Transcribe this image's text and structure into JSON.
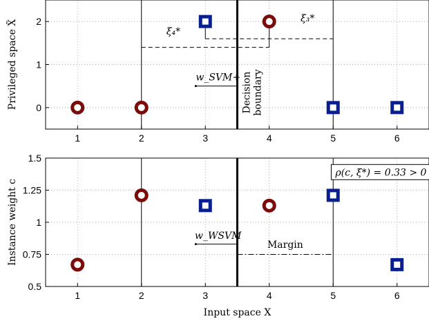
{
  "chart_data": [
    {
      "type": "scatter",
      "panel": "top",
      "xlim": [
        0.5,
        6.5
      ],
      "ylim": [
        -0.5,
        2.5
      ],
      "xticks": [
        "1",
        "2",
        "3",
        "4",
        "5",
        "6"
      ],
      "yticks": [
        "0",
        "1",
        "2"
      ],
      "ylabel": "Privileged space X̃",
      "grid": true,
      "series": [
        {
          "marker": "circle",
          "color": "#7b0c0c",
          "points": [
            {
              "x": 1,
              "y": 0
            },
            {
              "x": 2,
              "y": 0
            },
            {
              "x": 4,
              "y": 2
            }
          ]
        },
        {
          "marker": "square",
          "color": "#0a1f8f",
          "points": [
            {
              "x": 3,
              "y": 2
            },
            {
              "x": 5,
              "y": 0
            },
            {
              "x": 6,
              "y": 0
            }
          ]
        }
      ],
      "annotations": {
        "xi4": "ξ₄*",
        "xi3": "ξ₃*",
        "w_label": "w_SVM+",
        "boundary_line1": "Decision",
        "boundary_line2": "boundary"
      },
      "decision_boundary_x": 3.5
    },
    {
      "type": "scatter",
      "panel": "bottom",
      "xlim": [
        0.5,
        6.5
      ],
      "ylim": [
        0.5,
        1.5
      ],
      "xticks": [
        "1",
        "2",
        "3",
        "4",
        "5",
        "6"
      ],
      "yticks": [
        "0.5",
        "0.75",
        "1",
        "1.25",
        "1.5"
      ],
      "ylabel": "Instance weight c",
      "xlabel": "Input space X",
      "grid": true,
      "series": [
        {
          "marker": "circle",
          "color": "#7b0c0c",
          "points": [
            {
              "x": 1,
              "y": 0.67
            },
            {
              "x": 2,
              "y": 1.21
            },
            {
              "x": 4,
              "y": 1.13
            }
          ]
        },
        {
          "marker": "square",
          "color": "#0a1f8f",
          "points": [
            {
              "x": 3,
              "y": 1.13
            },
            {
              "x": 5,
              "y": 1.21
            },
            {
              "x": 6,
              "y": 0.67
            }
          ]
        }
      ],
      "annotations": {
        "w_label": "w_WSVM",
        "margin": "Margin",
        "rho": "ρ(c, ξ*) = 0.33 > 0"
      },
      "decision_boundary_x": 3.5
    }
  ]
}
